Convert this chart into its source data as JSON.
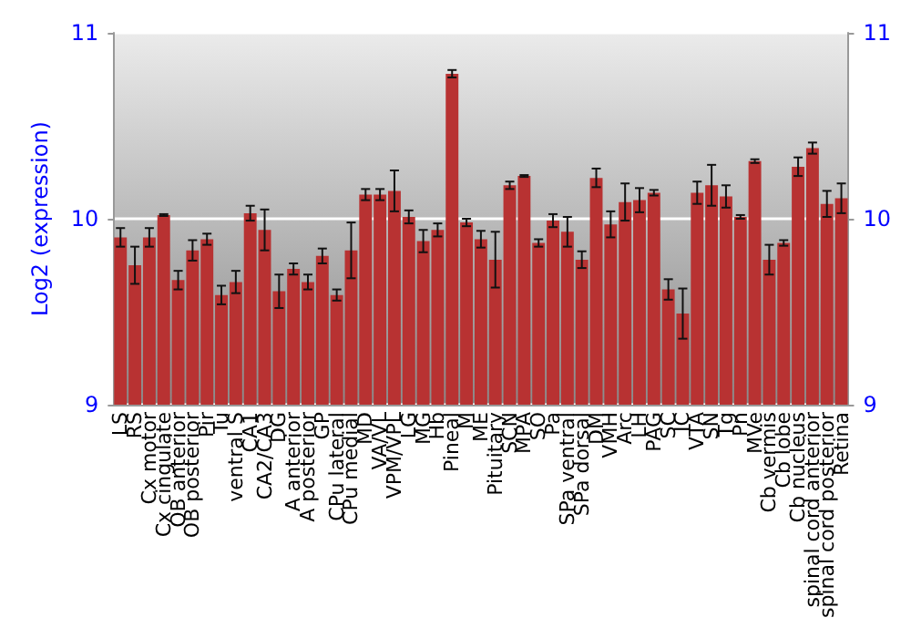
{
  "chart_data": {
    "type": "bar",
    "ylabel": "Log2 (expression)",
    "categories": [
      "LS",
      "RS",
      "Cx motor",
      "Cx cingulate",
      "OB anterior",
      "OB posterior",
      "Pir",
      "Tu",
      "ventral S",
      "CA1",
      "CA2/CA3",
      "DG",
      "A anterior",
      "A posterior",
      "GP",
      "CPu lateral",
      "CPu medial",
      "MD",
      "VA/VL",
      "VPM/VPL",
      "LG",
      "MG",
      "Hb",
      "Pineal",
      "M",
      "ME",
      "Pituitary",
      "SCN",
      "MPA",
      "SO",
      "Pa",
      "SPa ventral",
      "SPa dorsal",
      "DM",
      "VMH",
      "Arc",
      "LH",
      "PAG",
      "SC",
      "IC",
      "VTA",
      "SN",
      "Tg",
      "Pn",
      "MVe",
      "Cb vermis",
      "Cb lobe",
      "Cb nucleus",
      "spinal cord anterior",
      "spinal cord posterior",
      "Retina"
    ],
    "values": [
      9.9,
      9.75,
      9.9,
      10.02,
      9.67,
      9.83,
      9.89,
      9.59,
      9.66,
      10.03,
      9.94,
      9.61,
      9.73,
      9.66,
      9.8,
      9.59,
      9.83,
      10.13,
      10.13,
      10.15,
      10.01,
      9.88,
      9.94,
      10.78,
      9.98,
      9.89,
      9.78,
      10.18,
      10.23,
      9.87,
      9.99,
      9.93,
      9.78,
      10.22,
      9.97,
      10.09,
      10.1,
      10.14,
      9.62,
      9.49,
      10.14,
      10.18,
      10.12,
      10.01,
      10.31,
      9.78,
      9.87,
      10.28,
      10.38,
      10.08,
      10.11
    ],
    "errors": [
      0.05,
      0.1,
      0.05,
      0.005,
      0.05,
      0.055,
      0.03,
      0.05,
      0.06,
      0.04,
      0.11,
      0.09,
      0.03,
      0.04,
      0.04,
      0.03,
      0.15,
      0.03,
      0.03,
      0.11,
      0.035,
      0.06,
      0.035,
      0.02,
      0.02,
      0.045,
      0.15,
      0.02,
      0.005,
      0.02,
      0.035,
      0.08,
      0.045,
      0.05,
      0.07,
      0.1,
      0.065,
      0.015,
      0.055,
      0.135,
      0.06,
      0.11,
      0.06,
      0.01,
      0.01,
      0.08,
      0.015,
      0.05,
      0.03,
      0.07,
      0.08
    ],
    "color": "#b83232",
    "ylim": [
      9,
      11
    ],
    "yticks": [
      9,
      10,
      11
    ],
    "y2lim": [
      9,
      11
    ],
    "y2ticks": [
      9,
      10,
      11
    ],
    "grid": "y"
  }
}
